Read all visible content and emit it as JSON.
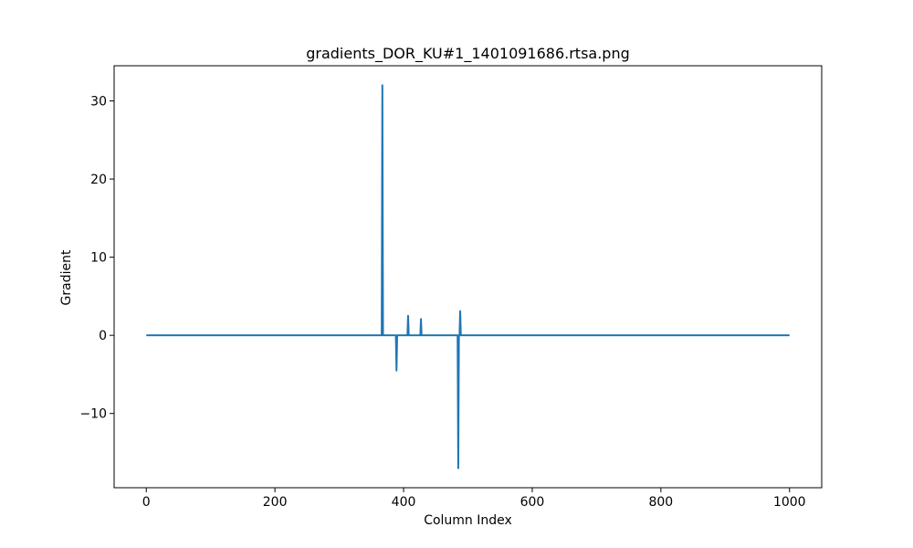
{
  "chart_data": {
    "type": "line",
    "title": "gradients_DOR_KU#1_1401091686.rtsa.png",
    "xlabel": "Column Index",
    "ylabel": "Gradient",
    "xlim": [
      -50,
      1050
    ],
    "ylim": [
      -19.5,
      34.5
    ],
    "xticks": [
      0,
      200,
      400,
      600,
      800,
      1000
    ],
    "xtick_labels": [
      "0",
      "200",
      "400",
      "600",
      "800",
      "1000"
    ],
    "yticks": [
      -10,
      0,
      10,
      20,
      30
    ],
    "ytick_labels": [
      "−10",
      "0",
      "10",
      "20",
      "30"
    ],
    "grid": false,
    "legend": "none",
    "series": [
      {
        "color": "#1f77b4",
        "x": [
          0,
          366,
          367,
          368,
          369,
          388,
          389,
          390,
          391,
          406,
          407,
          408,
          409,
          426,
          427,
          428,
          429,
          484,
          485,
          486,
          487,
          488,
          489,
          490,
          1000
        ],
        "y": [
          0,
          0,
          32,
          0,
          0,
          0,
          -4.5,
          0,
          0,
          0,
          2.5,
          0,
          0,
          0,
          2.1,
          0,
          0,
          0,
          -17,
          0,
          0,
          3.1,
          0,
          0,
          0
        ]
      }
    ]
  }
}
